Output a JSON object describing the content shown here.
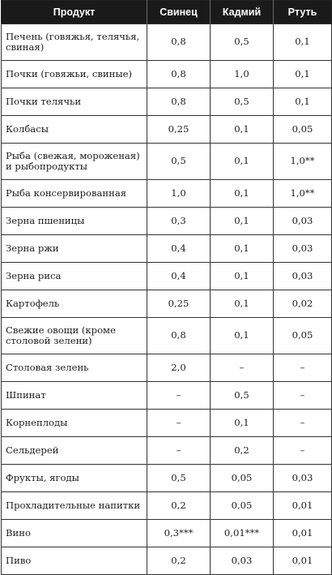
{
  "table": {
    "headers": [
      "Продукт",
      "Свинец",
      "Кадмий",
      "Ртуть"
    ],
    "rows": [
      [
        "Печень (говяжья, телячья, свиная)",
        "0,8",
        "0,5",
        "0,1"
      ],
      [
        "Почки (говяжьи, свиные)",
        "0,8",
        "1,0",
        "0,1"
      ],
      [
        "Почки телячьи",
        "0,8",
        "0,5",
        "0,1"
      ],
      [
        "Колбасы",
        "0,25",
        "0,1",
        "0,05"
      ],
      [
        "Рыба (свежая, мороженая) и рыбопродукты",
        "0,5",
        "0,1",
        "1,0**"
      ],
      [
        "Рыба консервированная",
        "1,0",
        "0,1",
        "1,0**"
      ],
      [
        "Зерна пшеницы",
        "0,3",
        "0,1",
        "0,03"
      ],
      [
        "Зерна ржи",
        "0,4",
        "0,1",
        "0,03"
      ],
      [
        "Зерна риса",
        "0,4",
        "0,1",
        "0,03"
      ],
      [
        "Картофель",
        "0,25",
        "0,1",
        "0,02"
      ],
      [
        "Свежие овощи (кроме столовой зелени)",
        "0,8",
        "0,1",
        "0,05"
      ],
      [
        "Столовая зелень",
        "2,0",
        "–",
        "–"
      ],
      [
        "Шпинат",
        "–",
        "0,5",
        "–"
      ],
      [
        "Корнеплоды",
        "–",
        "0,1",
        "–"
      ],
      [
        "Сельдерей",
        "–",
        "0,2",
        "–"
      ],
      [
        "Фрукты, ягоды",
        "0,5",
        "0,05",
        "0,03"
      ],
      [
        "Прохладительные напитки",
        "0,2",
        "0,05",
        "0,01"
      ],
      [
        "Вино",
        "0,3***",
        "0,01***",
        "0,01"
      ],
      [
        "Пиво",
        "0,2",
        "0,03",
        "0,01"
      ]
    ]
  }
}
